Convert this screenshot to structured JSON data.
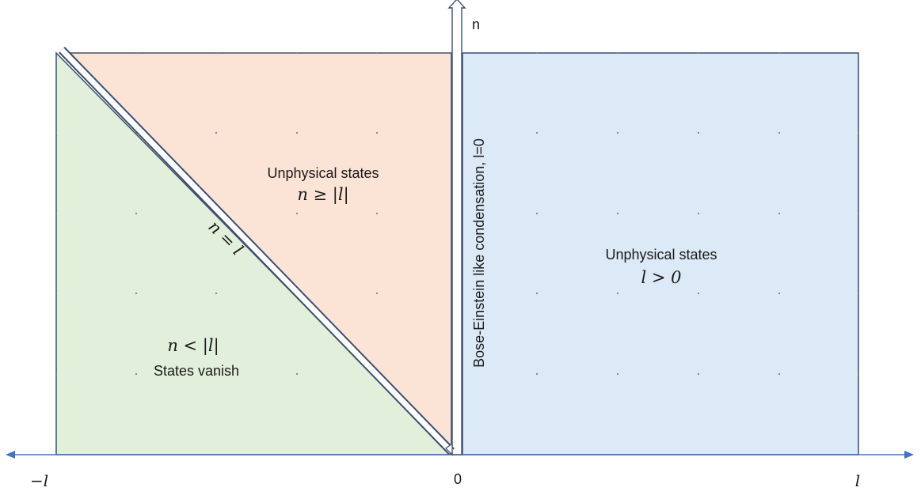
{
  "regions": {
    "vanish": {
      "math": "n < |l|",
      "label": "States vanish",
      "fill": "#e2efda"
    },
    "unphysical_left": {
      "label": "Unphysical states",
      "math": "n ≥ |l|",
      "fill": "#fbe3d6"
    },
    "unphysical_right": {
      "label": "Unphysical states",
      "math": "l > 0",
      "fill": "#dce9f6"
    }
  },
  "diagonal_label": "n = l",
  "vertical_label": "Bose-Einstein like condensation, l=0",
  "axes": {
    "vertical_axis_label": "n",
    "tick_left": "−l",
    "tick_center": "0",
    "tick_right": "l",
    "axis_color": "#4472c4",
    "border_color": "#3d4f6e"
  }
}
